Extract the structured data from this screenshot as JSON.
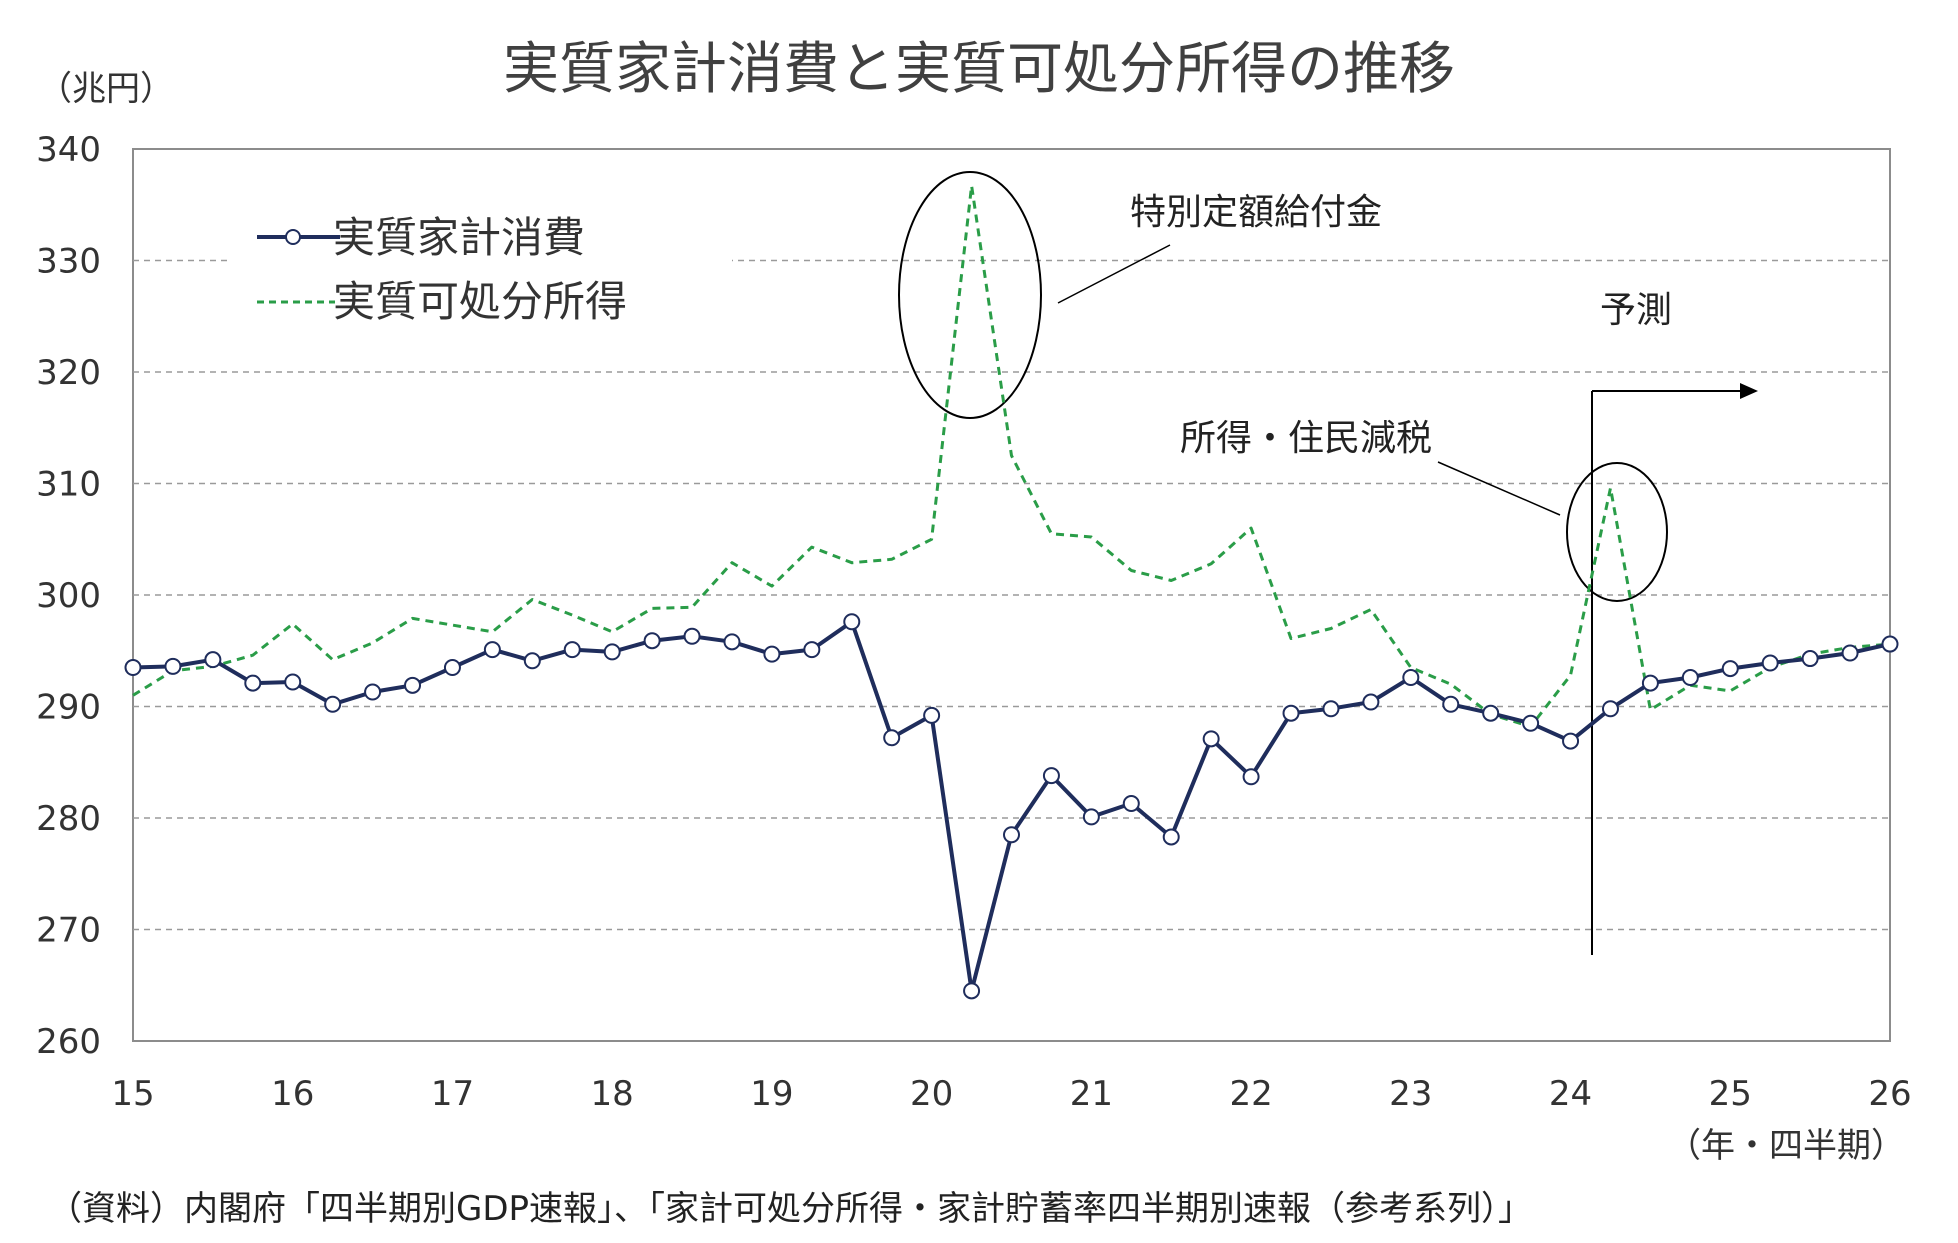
{
  "chart_data": {
    "type": "line",
    "title": "実質家計消費と実質可処分所得の推移",
    "ylabel": "（兆円）",
    "xlabel": "（年・四半期）",
    "ylim": [
      260,
      340
    ],
    "yticks": [
      "340",
      "330",
      "320",
      "310",
      "300",
      "290",
      "280",
      "270",
      "260"
    ],
    "xticks": [
      "15",
      "16",
      "17",
      "18",
      "19",
      "20",
      "21",
      "22",
      "23",
      "24",
      "25",
      "26"
    ],
    "grid": true,
    "legend_position": "top-left",
    "series": [
      {
        "name": "実質家計消費",
        "color": "#1f2d5c",
        "style": "solid-with-circle-markers",
        "values": [
          293.5,
          293.6,
          294.2,
          292.1,
          292.2,
          290.2,
          291.3,
          291.9,
          293.5,
          295.1,
          294.1,
          295.1,
          294.9,
          295.9,
          296.3,
          295.8,
          294.7,
          295.1,
          297.6,
          287.2,
          289.2,
          264.5,
          278.5,
          283.8,
          280.1,
          281.3,
          278.3,
          287.1,
          283.7,
          289.4,
          289.8,
          290.4,
          292.6,
          290.2,
          289.4,
          288.5,
          286.9,
          289.8,
          292.1,
          292.6,
          293.4,
          293.9,
          294.3,
          294.8,
          295.6
        ]
      },
      {
        "name": "実質可処分所得",
        "color": "#2a9d48",
        "style": "dashed",
        "values": [
          291.0,
          293.2,
          293.6,
          294.6,
          297.4,
          294.2,
          295.7,
          297.9,
          297.3,
          296.7,
          299.6,
          298.2,
          296.7,
          298.8,
          298.9,
          302.9,
          300.8,
          304.3,
          302.9,
          303.2,
          305.0,
          336.7,
          312.5,
          305.5,
          305.2,
          302.2,
          301.3,
          302.8,
          306.0,
          296.1,
          297.0,
          298.7,
          293.5,
          292.0,
          289.3,
          288.2,
          292.8,
          309.6,
          289.7,
          291.9,
          291.4,
          293.5,
          294.7,
          295.3,
          295.6
        ]
      }
    ],
    "annotations": {
      "special_benefit": "特別定額給付金",
      "tax_cut": "所得・住民減税",
      "forecast": "予測"
    }
  },
  "source_note": "（資料）内閣府「四半期別GDP速報」、「家計可処分所得・家計貯蓄率四半期別速報（参考系列）」"
}
